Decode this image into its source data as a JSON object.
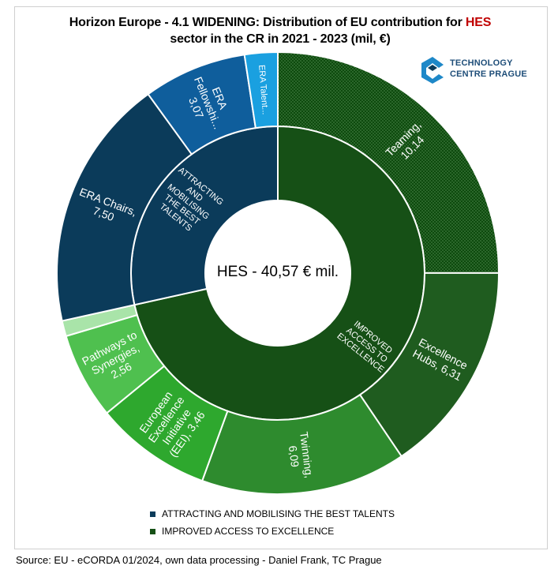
{
  "title": {
    "part1": "Horizon Europe - 4.1 WIDENING: Distribution of EU contribution for ",
    "highlight": "HES",
    "part2": "sector in the CR in 2021 - 2023 (mil, €)"
  },
  "logo": {
    "line1": "TECHNOLOGY",
    "line2": "CENTRE PRAGUE",
    "icon": "tc-prague-logo-icon"
  },
  "center_label": "HES - 40,57  € mil.",
  "colors": {
    "talents_inner": "#0b3b5a",
    "access_inner": "#165016",
    "hole": "#ffffff"
  },
  "chart_data": {
    "type": "sunburst",
    "total": 40.57,
    "inner": [
      {
        "name": "ATTRACTING AND MOBILISING THE BEST TALENTS",
        "label_lines": [
          "ATTRACTING",
          "AND",
          "MOBILISING",
          "THE BEST",
          "TALENTS"
        ],
        "value": 11.55,
        "color": "#0b3b5a"
      },
      {
        "name": "IMPROVED ACCESS TO EXCELLENCE",
        "label_lines": [
          "IMPROVED",
          "ACCESS TO",
          "EXCELLENCE"
        ],
        "value": 29.02,
        "color": "#165016"
      }
    ],
    "outer": [
      {
        "name": "Teaming",
        "label_lines": [
          "Teaming,",
          "10,14"
        ],
        "value": 10.14,
        "color": "#0d4a0d",
        "pattern": true,
        "parent": 1
      },
      {
        "name": "Excellence Hubs",
        "label_lines": [
          "Excellence",
          "Hubs, 6,31"
        ],
        "value": 6.31,
        "color": "#1f5c1f",
        "parent": 1
      },
      {
        "name": "Twinning",
        "label_lines": [
          "Twinning,",
          "6,09"
        ],
        "value": 6.09,
        "color": "#2e8b2e",
        "parent": 1
      },
      {
        "name": "European Excellence Initiative (EEI)",
        "label_lines": [
          "European",
          "Excellence",
          "Initiative",
          "(EEI), 3,46"
        ],
        "value": 3.46,
        "color": "#2ea82e",
        "parent": 1
      },
      {
        "name": "Pathways to Synergies",
        "label_lines": [
          "Pathways to",
          "Synergies,",
          "2,56"
        ],
        "value": 2.56,
        "color": "#4fc04f",
        "parent": 1
      },
      {
        "name": "other",
        "label_lines": [],
        "value": 0.46,
        "color": "#a9e4a9",
        "parent": 1
      },
      {
        "name": "ERA Chairs",
        "label_lines": [
          "ERA Chairs,",
          "7,50"
        ],
        "value": 7.5,
        "color": "#0b3b5a",
        "parent": 0
      },
      {
        "name": "ERA Fellowships",
        "label_lines": [
          "ERA",
          "Fellowshi...",
          "3,07"
        ],
        "value": 3.07,
        "color": "#0f5e9c",
        "parent": 0
      },
      {
        "name": "ERA Talents",
        "label_lines": [
          "ERA Talent..."
        ],
        "value": 0.98,
        "color": "#1aa0e0",
        "parent": 0
      }
    ],
    "legend": [
      {
        "label": "ATTRACTING AND MOBILISING THE BEST TALENTS",
        "color": "#0b3b5a"
      },
      {
        "label": "IMPROVED ACCESS TO EXCELLENCE",
        "color": "#165016"
      }
    ]
  },
  "source": "Source: EU - eCORDA 01/2024, own data processing  - Daniel Frank, TC Prague"
}
